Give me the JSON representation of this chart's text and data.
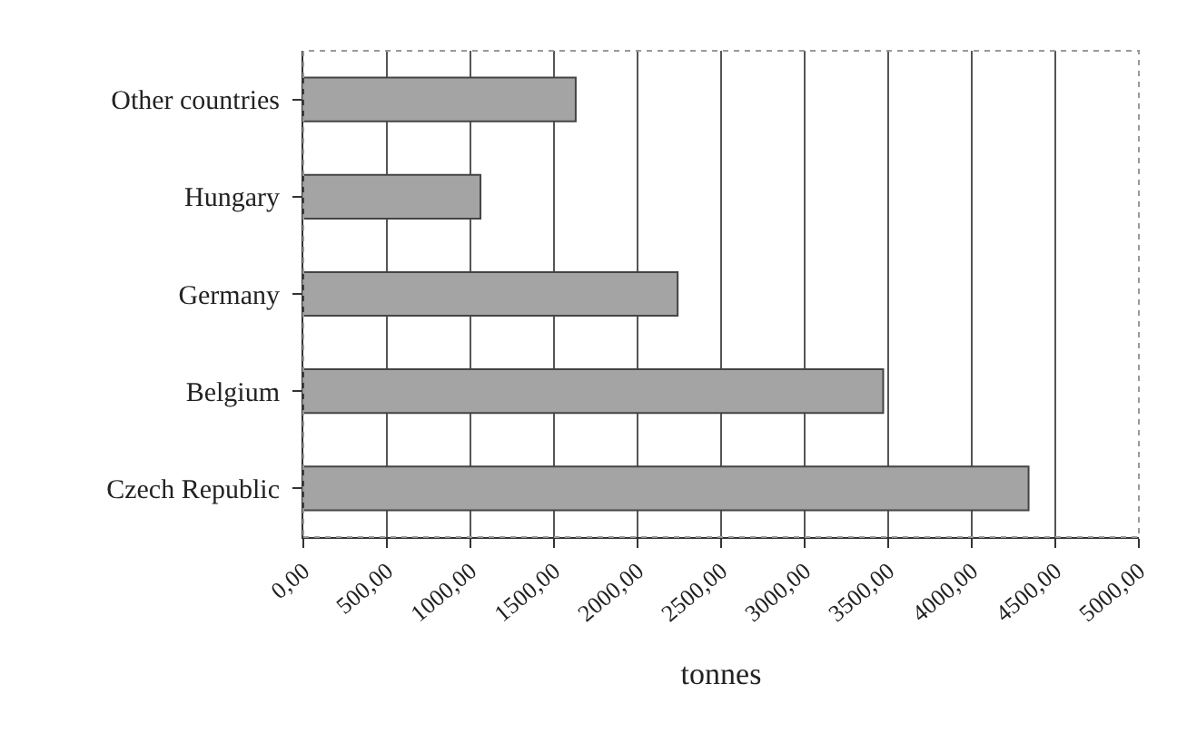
{
  "chart_data": {
    "type": "bar",
    "orientation": "horizontal",
    "xlabel": "tonnes",
    "categories": [
      "Other countries",
      "Hungary",
      "Germany",
      "Belgium",
      "Czech Republic"
    ],
    "values": [
      1630,
      1060,
      2240,
      3470,
      4340
    ],
    "color": "#a4a4a4",
    "xlim": [
      0,
      5000
    ],
    "xticks": [
      {
        "value": 0,
        "label": "0,00"
      },
      {
        "value": 500,
        "label": "500,00"
      },
      {
        "value": 1000,
        "label": "1000,00"
      },
      {
        "value": 1500,
        "label": "1500,00"
      },
      {
        "value": 2000,
        "label": "2000,00"
      },
      {
        "value": 2500,
        "label": "2500,00"
      },
      {
        "value": 3000,
        "label": "3000,00"
      },
      {
        "value": 3500,
        "label": "3500,00"
      },
      {
        "value": 4000,
        "label": "4000,00"
      },
      {
        "value": 4500,
        "label": "4500,00"
      },
      {
        "value": 5000,
        "label": "5000,00"
      }
    ],
    "grid": "x",
    "legend": false
  }
}
